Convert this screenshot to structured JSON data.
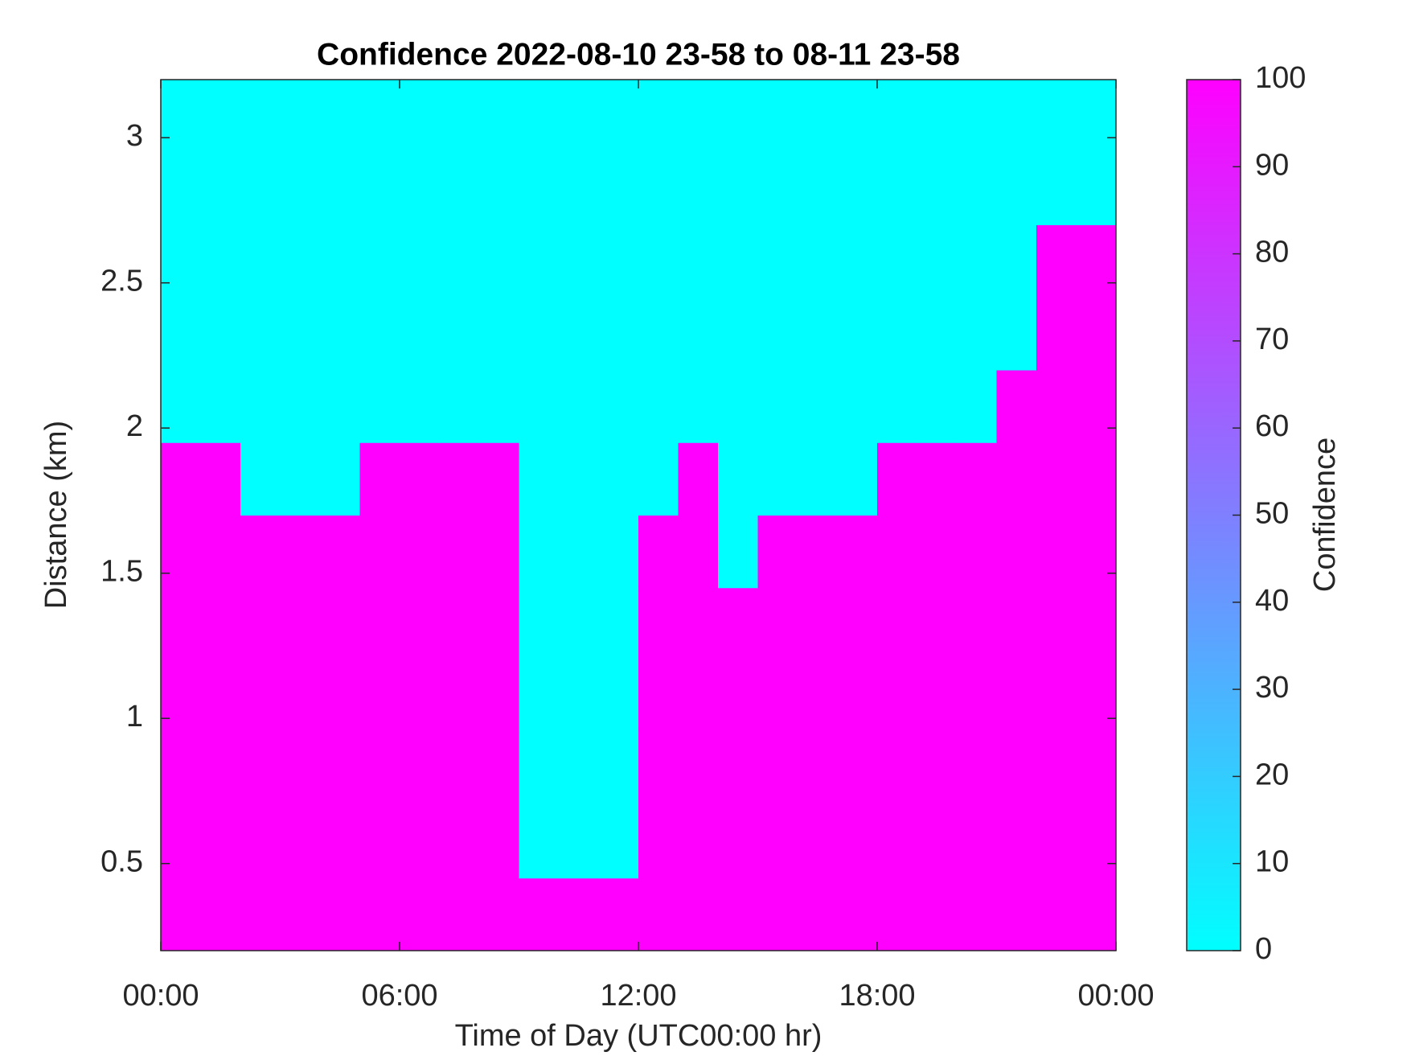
{
  "chart_data": {
    "type": "heatmap",
    "title": "Confidence 2022-08-10 23-58 to 08-11 23-58",
    "x_label": "Time of Day (UTC00:00 hr)",
    "y_label": "Distance (km)",
    "colorbar_label": "Confidence",
    "x": [
      0.5,
      1.5,
      2.5,
      3.5,
      4.5,
      5.5,
      6.5,
      7.5,
      8.5,
      9.5,
      10.5,
      11.5,
      12.5,
      13.5,
      14.5,
      15.5,
      16.5,
      17.5,
      18.5,
      19.5,
      20.5,
      21.5,
      22.5,
      23.5
    ],
    "y": [
      0.325,
      0.575,
      0.825,
      1.075,
      1.325,
      1.575,
      1.825,
      2.075,
      2.325,
      2.575,
      2.825,
      3.075
    ],
    "z": [
      [
        100,
        100,
        100,
        100,
        100,
        100,
        100,
        100,
        100,
        100,
        100,
        100,
        100,
        100,
        100,
        100,
        100,
        100,
        100,
        100,
        100,
        100,
        100,
        100
      ],
      [
        100,
        100,
        100,
        100,
        100,
        100,
        100,
        100,
        100,
        0,
        0,
        0,
        100,
        100,
        100,
        100,
        100,
        100,
        100,
        100,
        100,
        100,
        100,
        100
      ],
      [
        100,
        100,
        100,
        100,
        100,
        100,
        100,
        100,
        100,
        0,
        0,
        0,
        100,
        100,
        100,
        100,
        100,
        100,
        100,
        100,
        100,
        100,
        100,
        100
      ],
      [
        100,
        100,
        100,
        100,
        100,
        100,
        100,
        100,
        100,
        0,
        0,
        0,
        100,
        100,
        100,
        100,
        100,
        100,
        100,
        100,
        100,
        100,
        100,
        100
      ],
      [
        100,
        100,
        100,
        100,
        100,
        100,
        100,
        100,
        100,
        0,
        0,
        0,
        100,
        100,
        100,
        100,
        100,
        100,
        100,
        100,
        100,
        100,
        100,
        100
      ],
      [
        100,
        100,
        100,
        100,
        100,
        100,
        100,
        100,
        100,
        0,
        0,
        0,
        100,
        100,
        0,
        100,
        100,
        100,
        100,
        100,
        100,
        100,
        100,
        100
      ],
      [
        100,
        100,
        0,
        0,
        0,
        100,
        100,
        100,
        100,
        0,
        0,
        0,
        0,
        100,
        0,
        0,
        0,
        0,
        100,
        100,
        100,
        100,
        100,
        100
      ],
      [
        0,
        0,
        0,
        0,
        0,
        0,
        0,
        0,
        0,
        0,
        0,
        0,
        0,
        0,
        0,
        0,
        0,
        0,
        0,
        0,
        0,
        100,
        100,
        100
      ],
      [
        0,
        0,
        0,
        0,
        0,
        0,
        0,
        0,
        0,
        0,
        0,
        0,
        0,
        0,
        0,
        0,
        0,
        0,
        0,
        0,
        0,
        0,
        100,
        100
      ],
      [
        0,
        0,
        0,
        0,
        0,
        0,
        0,
        0,
        0,
        0,
        0,
        0,
        0,
        0,
        0,
        0,
        0,
        0,
        0,
        0,
        0,
        0,
        100,
        100
      ],
      [
        0,
        0,
        0,
        0,
        0,
        0,
        0,
        0,
        0,
        0,
        0,
        0,
        0,
        0,
        0,
        0,
        0,
        0,
        0,
        0,
        0,
        0,
        0,
        0
      ],
      [
        0,
        0,
        0,
        0,
        0,
        0,
        0,
        0,
        0,
        0,
        0,
        0,
        0,
        0,
        0,
        0,
        0,
        0,
        0,
        0,
        0,
        0,
        0,
        0
      ]
    ],
    "xlim": [
      0,
      24
    ],
    "xticks": [
      {
        "value": 0,
        "label": "00:00"
      },
      {
        "value": 6,
        "label": "06:00"
      },
      {
        "value": 12,
        "label": "12:00"
      },
      {
        "value": 18,
        "label": "18:00"
      },
      {
        "value": 24,
        "label": "00:00"
      }
    ],
    "ylim": [
      0.2,
      3.2
    ],
    "yticks": [
      0.5,
      1,
      1.5,
      2,
      2.5,
      3
    ],
    "clim": [
      0,
      100
    ],
    "cticks": [
      0,
      10,
      20,
      30,
      40,
      50,
      60,
      70,
      80,
      90,
      100
    ],
    "colormap": [
      "#00ffff",
      "#ff00ff"
    ]
  }
}
